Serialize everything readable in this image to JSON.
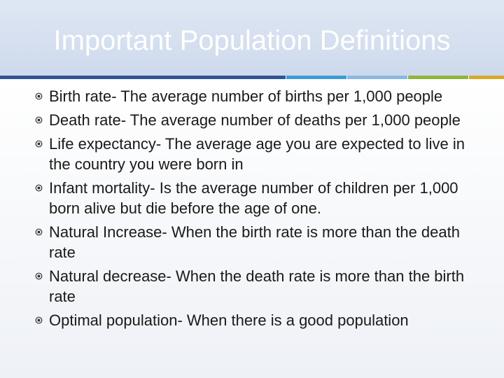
{
  "slide": {
    "title": "Important Population Definitions",
    "accent_colors": [
      "#2f5597",
      "#3d9bd6",
      "#8bb8df",
      "#8fb63b",
      "#d9a82a"
    ],
    "bullets": [
      "Birth rate- The average number of births per 1,000 people",
      "Death rate- The average number of deaths per 1,000 people",
      "Life expectancy- The average age you are expected to live in the country you were born in",
      "Infant mortality- Is the average number of children per 1,000 born alive but die before the age of one.",
      "Natural Increase- When the birth rate is more than the death rate",
      "Natural decrease- When the death rate is more than the birth rate",
      "Optimal population- When there is a good population"
    ],
    "bullet_icon": "circle-bullet-icon"
  }
}
